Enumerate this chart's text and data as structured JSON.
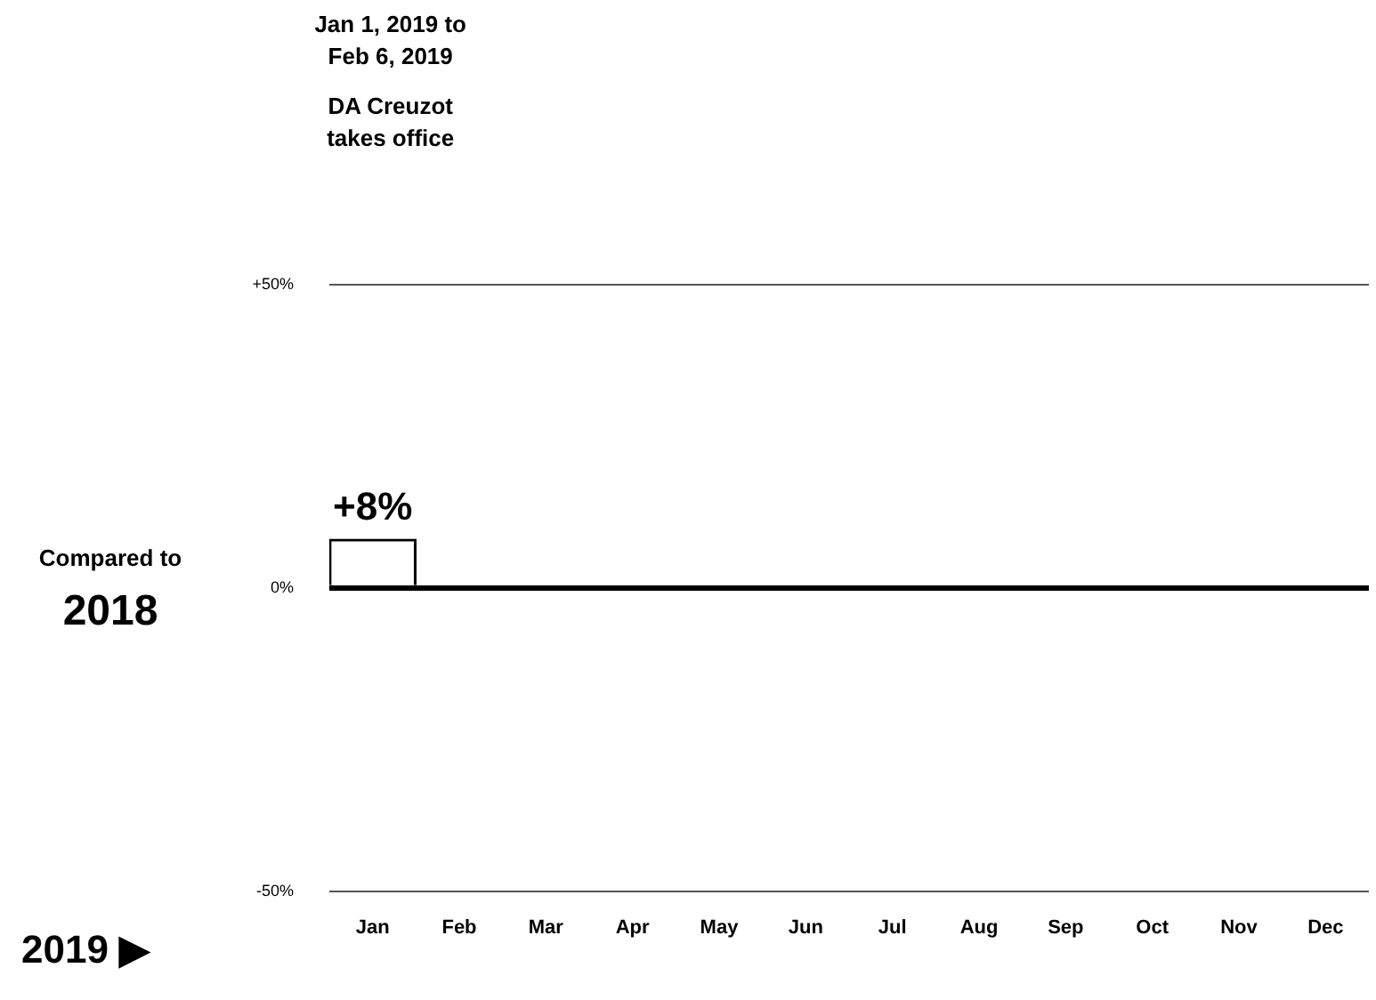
{
  "chart_data": {
    "type": "bar",
    "xlabel": "2019 ▶",
    "ylabel": "Compared to 2018",
    "annotations": [
      "Jan 1, 2019 to Feb 6, 2019",
      "DA Creuzot takes office"
    ],
    "categories": [
      "Jan",
      "Feb",
      "Mar",
      "Apr",
      "May",
      "Jun",
      "Jul",
      "Aug",
      "Sep",
      "Oct",
      "Nov",
      "Dec"
    ],
    "values": [
      8,
      null,
      null,
      null,
      null,
      null,
      null,
      null,
      null,
      null,
      null,
      null
    ],
    "value_labels": [
      "+8%",
      null,
      null,
      null,
      null,
      null,
      null,
      null,
      null,
      null,
      null,
      null
    ],
    "color": "#ffffff",
    "ylim": [
      -50,
      50
    ],
    "yticks": [
      {
        "value": -50,
        "label": "-50%"
      },
      {
        "value": 0,
        "label": "0%"
      },
      {
        "value": 50,
        "label": "+50%"
      }
    ],
    "grid": "y",
    "legend": false
  }
}
